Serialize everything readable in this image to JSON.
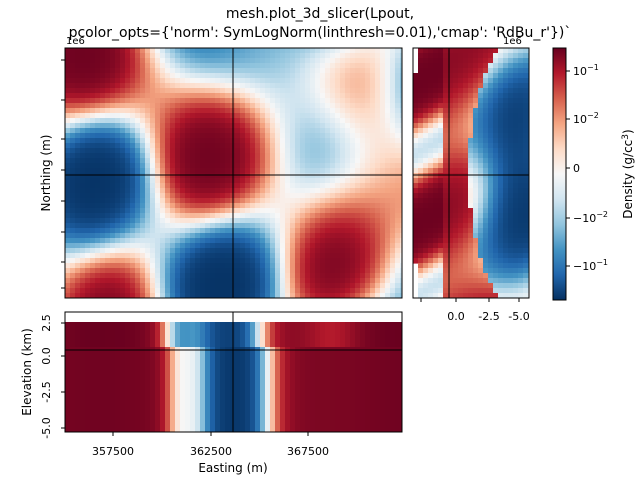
{
  "figure": {
    "title_line1": "mesh.plot_3d_slicer(Lpout,",
    "title_line2": "pcolor_opts={'norm': SymLogNorm(linthresh=0.01),'cmap': 'RdBu_r'})`"
  },
  "chart_data": [
    {
      "panel": "plan-view",
      "type": "heatmap",
      "xlabel": "",
      "ylabel": "Northing (m)",
      "x_tick_labels": [],
      "y_tick_labels": [
        "",
        "",
        "",
        "",
        "",
        "",
        "",
        ""
      ],
      "y_offset_label": "1e6",
      "slice_lines": true
    },
    {
      "panel": "side-view",
      "type": "heatmap",
      "xlabel": "",
      "x_tick_labels": [
        "0.0",
        "-2.5",
        "-5.0"
      ],
      "x_offset_label": "1e6",
      "slice_lines": true
    },
    {
      "panel": "cross-section",
      "type": "heatmap",
      "xlabel": "Easting (m)",
      "ylabel": "Elevation (km)",
      "x_tick_labels": [
        "357500",
        "362500",
        "367500"
      ],
      "y_tick_labels": [
        "2.5",
        "0.0",
        "-2.5",
        "-5.0"
      ],
      "slice_lines": true
    }
  ],
  "colorbar": {
    "label": "Density (g/cc",
    "label_superscript": "3",
    "label_close": ")",
    "cmap": "RdBu_r",
    "norm": "SymLogNorm(linthresh=0.01)",
    "ticks": [
      {
        "base": "10",
        "exp": "−1"
      },
      {
        "base": "10",
        "exp": "−2"
      },
      {
        "base": "0",
        "exp": ""
      },
      {
        "base": "−10",
        "exp": "−2"
      },
      {
        "base": "−10",
        "exp": "−1"
      }
    ],
    "colors": [
      "#053061",
      "#2166ac",
      "#4393c3",
      "#92c5de",
      "#d1e5f0",
      "#f7f7f7",
      "#fddbc7",
      "#f4a582",
      "#d6604d",
      "#b2182b",
      "#67001f"
    ]
  }
}
